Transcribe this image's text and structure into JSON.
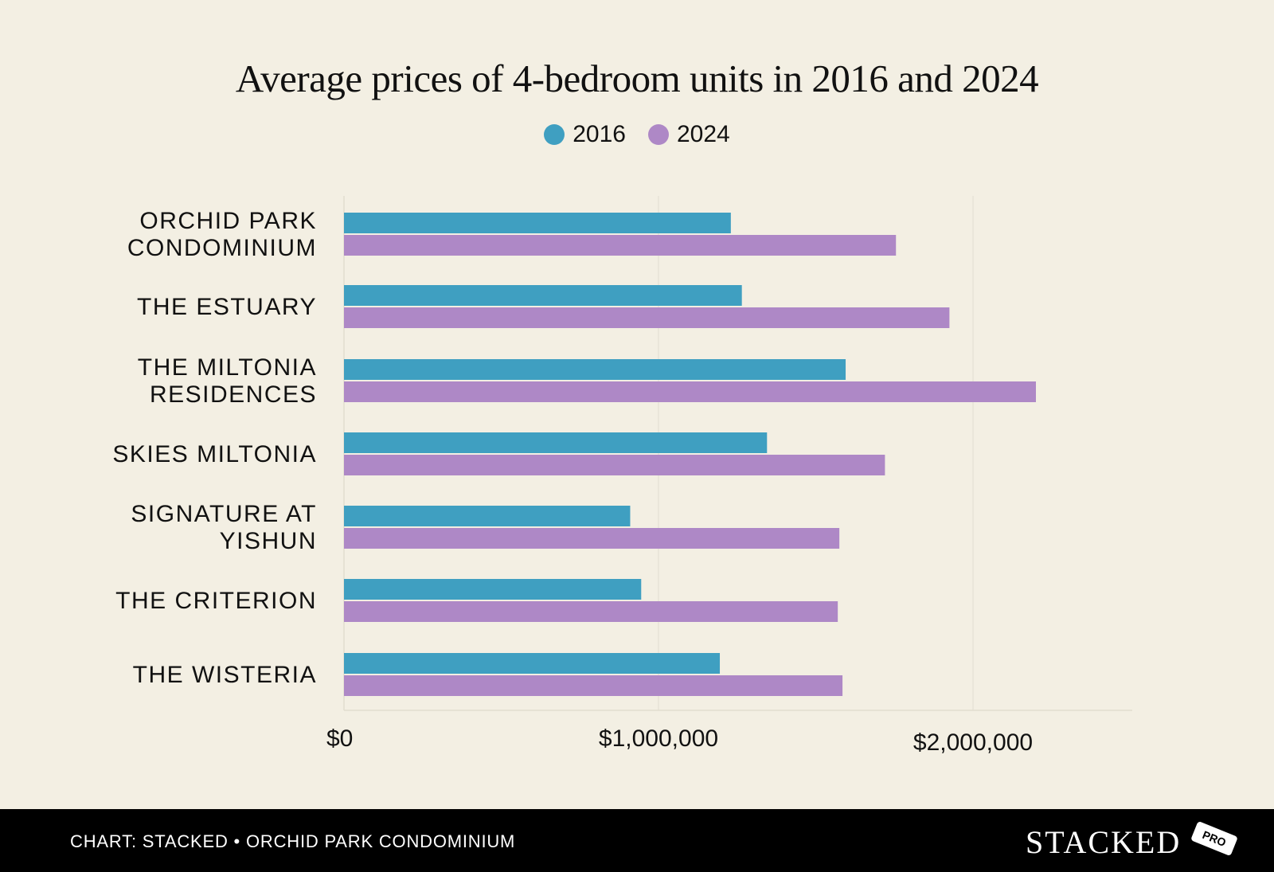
{
  "chart_data": {
    "type": "bar",
    "orientation": "horizontal",
    "title": "Average prices of 4-bedroom units in 2016 and 2024",
    "categories": [
      [
        "ORCHID PARK",
        "CONDOMINIUM"
      ],
      [
        "THE ESTUARY"
      ],
      [
        "THE MILTONIA",
        "RESIDENCES"
      ],
      [
        "SKIES MILTONIA"
      ],
      [
        "SIGNATURE AT",
        "YISHUN"
      ],
      [
        "THE CRITERION"
      ],
      [
        "THE WISTERIA"
      ]
    ],
    "series": [
      {
        "name": "2016",
        "color": "#3f9fc1",
        "values": [
          1230000,
          1265000,
          1595000,
          1345000,
          910000,
          945000,
          1195000
        ]
      },
      {
        "name": "2024",
        "color": "#ae88c6",
        "values": [
          1755000,
          1925000,
          2200000,
          1720000,
          1575000,
          1570000,
          1585000
        ]
      }
    ],
    "xlim": [
      0,
      2500000
    ],
    "xticks": [
      {
        "value": 0,
        "label": "$0"
      },
      {
        "value": 1000000,
        "label": "$1,000,000"
      },
      {
        "value": 2000000,
        "label": "$2,000,000"
      }
    ],
    "grid": true,
    "legend": "top-center",
    "xlabel": "",
    "ylabel": ""
  },
  "footer": {
    "source": "CHART: STACKED • ORCHID PARK CONDOMINIUM",
    "brand": "STACKED",
    "brand_tag": "PRO"
  }
}
